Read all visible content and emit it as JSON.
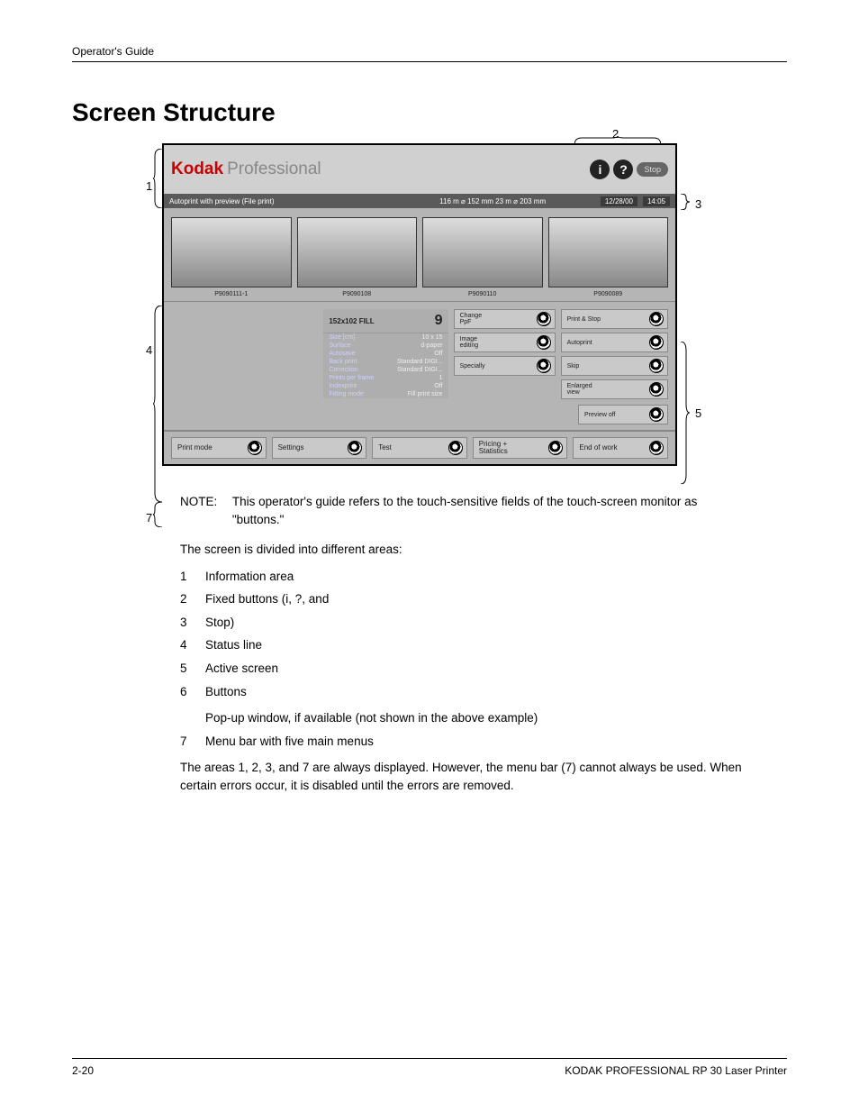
{
  "page": {
    "header": "Operator's Guide",
    "title": "Screen Structure",
    "footer_left": "2-20",
    "footer_right": "KODAK PROFESSIONAL RP 30 Laser Printer"
  },
  "screenshot": {
    "logo": {
      "brand": "Kodak",
      "word": "Professional",
      "brand_color": "#c00000"
    },
    "fixed": {
      "info": "i",
      "help": "?",
      "stop": "Stop"
    },
    "status": {
      "left": "Autoprint with preview (File print)",
      "mid": "116 m ⌀ 152 mm   23 m ⌀ 203 mm",
      "date": "12/28/00",
      "time": "14:05"
    },
    "thumbs": [
      "P9090111-1",
      "P9090108",
      "P9090110",
      "P9090089"
    ],
    "info_panel": {
      "head_left": "152x102 FILL",
      "head_right": "9",
      "rows": [
        {
          "k": "Size [cm]",
          "v": "10 x 15"
        },
        {
          "k": "Surface",
          "v": "d-paper"
        },
        {
          "k": "Autosave",
          "v": "Off"
        },
        {
          "k": "Back print",
          "v": "Standard DIGI..."
        },
        {
          "k": "Correction",
          "v": "Standard DIGI..."
        },
        {
          "k": "Prints per frame",
          "v": "1"
        },
        {
          "k": "Indexprint",
          "v": "Off"
        },
        {
          "k": "Fitting mode",
          "v": "Fill  print size"
        }
      ]
    },
    "col_a": [
      "Change\nPpF",
      "Image\nediting",
      "Specially"
    ],
    "col_b": [
      "Print & Stop",
      "Autoprint",
      "Skip",
      "Enlarged\nview"
    ],
    "preview_off": "Preview off",
    "menu": [
      "Print mode",
      "Settings",
      "Test",
      "Pricing +\nStatistics",
      "End of work"
    ]
  },
  "callouts": {
    "c1": "1",
    "c2": "2",
    "c3": "3",
    "c4": "4",
    "c5": "5",
    "c7": "7"
  },
  "text": {
    "note_label": "NOTE:",
    "note": "This operator's guide refers to the touch-sensitive fields of the touch-screen monitor as \"buttons.\"",
    "intro": "The screen is divided into different areas:",
    "items": [
      {
        "n": "1",
        "t": "Information area"
      },
      {
        "n": "2",
        "t": "Fixed buttons (i, ?, and"
      },
      {
        "n": "3",
        "t": "Stop)"
      },
      {
        "n": "4",
        "t": "Status line"
      },
      {
        "n": "5",
        "t": "Active screen"
      },
      {
        "n": "6",
        "t": "Buttons"
      }
    ],
    "sub6": "Pop-up window, if available (not shown in the above example)",
    "item7": {
      "n": "7",
      "t": "Menu bar with five main menus"
    },
    "outro": "The areas 1, 2, 3, and 7 are always displayed. However, the menu bar (7) cannot always be used. When certain errors occur, it is disabled until the errors are removed."
  }
}
